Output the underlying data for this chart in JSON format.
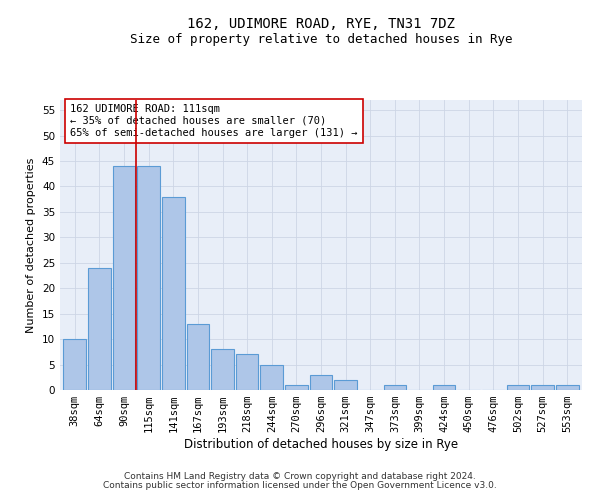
{
  "title": "162, UDIMORE ROAD, RYE, TN31 7DZ",
  "subtitle": "Size of property relative to detached houses in Rye",
  "xlabel": "Distribution of detached houses by size in Rye",
  "ylabel": "Number of detached properties",
  "bar_labels": [
    "38sqm",
    "64sqm",
    "90sqm",
    "115sqm",
    "141sqm",
    "167sqm",
    "193sqm",
    "218sqm",
    "244sqm",
    "270sqm",
    "296sqm",
    "321sqm",
    "347sqm",
    "373sqm",
    "399sqm",
    "424sqm",
    "450sqm",
    "476sqm",
    "502sqm",
    "527sqm",
    "553sqm"
  ],
  "bar_values": [
    10,
    24,
    44,
    44,
    38,
    13,
    8,
    7,
    5,
    1,
    3,
    2,
    0,
    1,
    0,
    1,
    0,
    0,
    1,
    1,
    1
  ],
  "bar_color": "#aec6e8",
  "bar_edge_color": "#5b9bd5",
  "bar_linewidth": 0.8,
  "vline_x": 3.0,
  "vline_color": "#cc0000",
  "vline_linewidth": 1.2,
  "annotation_text": "162 UDIMORE ROAD: 111sqm\n← 35% of detached houses are smaller (70)\n65% of semi-detached houses are larger (131) →",
  "annotation_box_edgecolor": "#cc0000",
  "annotation_box_facecolor": "#ffffff",
  "ylim": [
    0,
    57
  ],
  "yticks": [
    0,
    5,
    10,
    15,
    20,
    25,
    30,
    35,
    40,
    45,
    50,
    55
  ],
  "grid_color": "#cdd5e5",
  "background_color": "#e8eef8",
  "footer_line1": "Contains HM Land Registry data © Crown copyright and database right 2024.",
  "footer_line2": "Contains public sector information licensed under the Open Government Licence v3.0.",
  "title_fontsize": 10,
  "subtitle_fontsize": 9,
  "xlabel_fontsize": 8.5,
  "ylabel_fontsize": 8,
  "tick_fontsize": 7.5,
  "annotation_fontsize": 7.5,
  "footer_fontsize": 6.5
}
